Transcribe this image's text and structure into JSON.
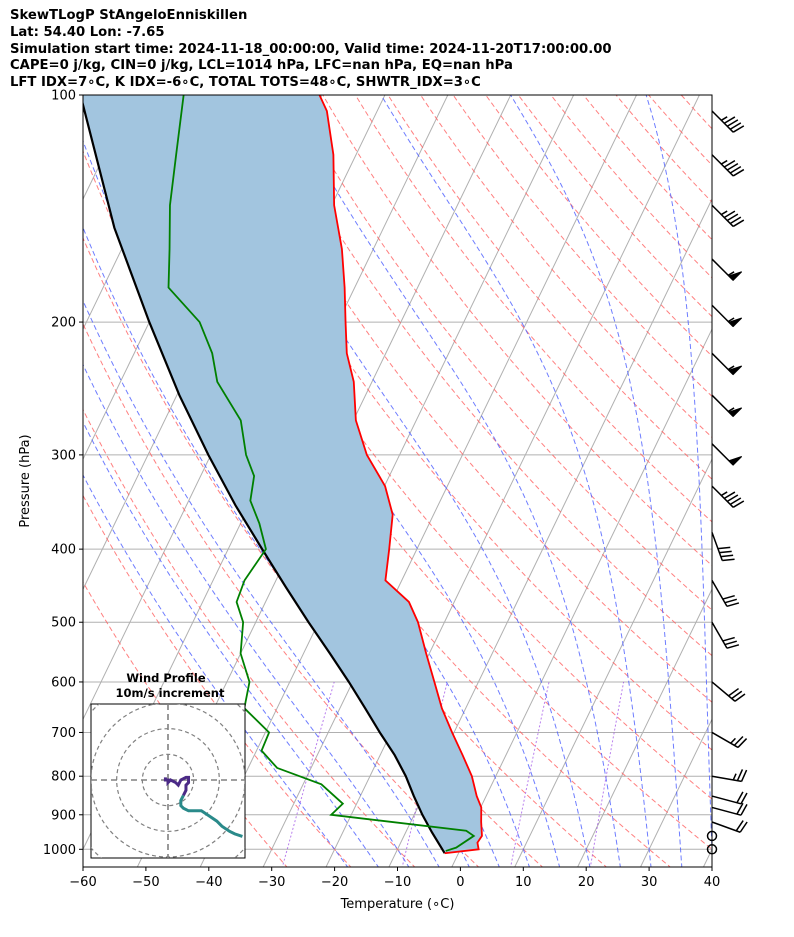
{
  "header": {
    "title": "SkewTLogP StAngeloEnniskillen",
    "location": "Lat: 54.40   Lon: -7.65",
    "times": "Simulation start time: 2024-11-18_00:00:00, Valid time: 2024-11-20T17:00:00.00",
    "indices1": "CAPE=0 j/kg, CIN=0 j/kg, LCL=1014 hPa, LFC=nan hPa, EQ=nan hPa",
    "indices2": "LFT IDX=7∘C, K IDX=-6∘C, TOTAL TOTS=48∘C, SHWTR_IDX=3∘C"
  },
  "colors": {
    "temperature": "#ff0000",
    "dewpoint": "#008000",
    "parcel": "#000000",
    "cape_fill": "#a2c5df",
    "dry_adiabat": "#ff6060",
    "moist_adiabat": "#4a5cff",
    "mixing_ratio": "#8a2be2",
    "isotherm": "#b0b0b0",
    "hodograph_upper": "#4b2a86",
    "hodograph_lower": "#2a8a8a"
  },
  "chart_data": {
    "type": "line",
    "title": "SkewTLogP StAngeloEnniskillen",
    "xlabel": "Temperature (∘C)",
    "ylabel": "Pressure (hPa)",
    "xlim": [
      -60,
      40
    ],
    "ylim": [
      1050,
      100
    ],
    "x_ticks": [
      -60,
      -50,
      -40,
      -30,
      -20,
      -10,
      0,
      10,
      20,
      30,
      40
    ],
    "x_tick_labels": [
      "−60",
      "−50",
      "−40",
      "−30",
      "−20",
      "−10",
      "0",
      "10",
      "20",
      "30",
      "40"
    ],
    "y_ticks": [
      1000,
      900,
      800,
      700,
      600,
      500,
      400,
      300,
      200,
      100
    ],
    "y_tick_labels": [
      "1000",
      "900",
      "800",
      "700",
      "600",
      "500",
      "400",
      "300",
      "200",
      "100"
    ],
    "skew_deg_per_decade": 58,
    "series": [
      {
        "name": "Temperature",
        "color": "#ff0000",
        "points": [
          [
            1012,
            -2.2
          ],
          [
            1000,
            2.9
          ],
          [
            980,
            2.2
          ],
          [
            960,
            2.4
          ],
          [
            920,
            1.2
          ],
          [
            880,
            0.1
          ],
          [
            850,
            -1.5
          ],
          [
            800,
            -3.8
          ],
          [
            750,
            -6.9
          ],
          [
            700,
            -10.3
          ],
          [
            650,
            -13.8
          ],
          [
            600,
            -17.0
          ],
          [
            550,
            -20.5
          ],
          [
            500,
            -24.2
          ],
          [
            470,
            -27.2
          ],
          [
            440,
            -32.6
          ],
          [
            400,
            -34.4
          ],
          [
            360,
            -36.5
          ],
          [
            330,
            -39.9
          ],
          [
            300,
            -45.2
          ],
          [
            270,
            -49.6
          ],
          [
            240,
            -52.9
          ],
          [
            220,
            -56.2
          ],
          [
            200,
            -58.8
          ],
          [
            180,
            -61.6
          ],
          [
            160,
            -65.0
          ],
          [
            140,
            -69.6
          ],
          [
            120,
            -73.6
          ],
          [
            105,
            -78.0
          ],
          [
            100,
            -80.4
          ]
        ]
      },
      {
        "name": "Dewpoint",
        "color": "#008000",
        "points": [
          [
            1005,
            -2.2
          ],
          [
            995,
            -0.8
          ],
          [
            960,
            1.1
          ],
          [
            945,
            -0.5
          ],
          [
            900,
            -23.2
          ],
          [
            870,
            -22.2
          ],
          [
            820,
            -27.1
          ],
          [
            780,
            -35.4
          ],
          [
            740,
            -39.2
          ],
          [
            700,
            -39.4
          ],
          [
            650,
            -45.2
          ],
          [
            600,
            -46.4
          ],
          [
            550,
            -50.0
          ],
          [
            500,
            -52.0
          ],
          [
            470,
            -54.6
          ],
          [
            440,
            -55.0
          ],
          [
            400,
            -54.0
          ],
          [
            370,
            -57.0
          ],
          [
            345,
            -60.2
          ],
          [
            320,
            -61.5
          ],
          [
            300,
            -64.4
          ],
          [
            270,
            -67.9
          ],
          [
            240,
            -74.6
          ],
          [
            220,
            -77.6
          ],
          [
            200,
            -82.0
          ],
          [
            180,
            -89.6
          ],
          [
            160,
            -92.4
          ],
          [
            140,
            -95.7
          ],
          [
            120,
            -98.6
          ],
          [
            100,
            -102.0
          ]
        ]
      },
      {
        "name": "Parcel",
        "color": "#000000",
        "points": [
          [
            1012,
            -2.2
          ],
          [
            950,
            -5.8
          ],
          [
            900,
            -8.7
          ],
          [
            850,
            -11.5
          ],
          [
            800,
            -14.3
          ],
          [
            750,
            -17.7
          ],
          [
            700,
            -21.8
          ],
          [
            650,
            -26.0
          ],
          [
            600,
            -30.6
          ],
          [
            550,
            -35.8
          ],
          [
            500,
            -41.6
          ],
          [
            450,
            -47.8
          ],
          [
            400,
            -54.6
          ],
          [
            350,
            -62.2
          ],
          [
            300,
            -70.4
          ],
          [
            250,
            -79.6
          ],
          [
            200,
            -90.0
          ],
          [
            150,
            -102.8
          ],
          [
            100,
            -118.4
          ]
        ]
      }
    ],
    "wind_barbs": [
      {
        "p": 1000,
        "speed_kt": 0,
        "dir_deg": 0
      },
      {
        "p": 960,
        "speed_kt": 0,
        "dir_deg": 0
      },
      {
        "p": 920,
        "speed_kt": 20,
        "dir_deg": 290
      },
      {
        "p": 880,
        "speed_kt": 20,
        "dir_deg": 285
      },
      {
        "p": 850,
        "speed_kt": 20,
        "dir_deg": 285
      },
      {
        "p": 800,
        "speed_kt": 25,
        "dir_deg": 280
      },
      {
        "p": 700,
        "speed_kt": 25,
        "dir_deg": 300
      },
      {
        "p": 600,
        "speed_kt": 30,
        "dir_deg": 310
      },
      {
        "p": 500,
        "speed_kt": 30,
        "dir_deg": 330
      },
      {
        "p": 440,
        "speed_kt": 30,
        "dir_deg": 330
      },
      {
        "p": 380,
        "speed_kt": 40,
        "dir_deg": 340
      },
      {
        "p": 330,
        "speed_kt": 45,
        "dir_deg": 315
      },
      {
        "p": 290,
        "speed_kt": 50,
        "dir_deg": 315
      },
      {
        "p": 250,
        "speed_kt": 55,
        "dir_deg": 315
      },
      {
        "p": 220,
        "speed_kt": 55,
        "dir_deg": 315
      },
      {
        "p": 190,
        "speed_kt": 55,
        "dir_deg": 315
      },
      {
        "p": 165,
        "speed_kt": 55,
        "dir_deg": 315
      },
      {
        "p": 140,
        "speed_kt": 45,
        "dir_deg": 315
      },
      {
        "p": 120,
        "speed_kt": 45,
        "dir_deg": 315
      },
      {
        "p": 105,
        "speed_kt": 45,
        "dir_deg": 315
      }
    ],
    "hodograph": {
      "title": "Wind Profile",
      "subtitle": "10m/s increment",
      "ring_increment_ms": 10,
      "rings": 4,
      "xlim": [
        -30,
        30
      ],
      "ylim": [
        -30,
        30
      ],
      "upper_points": [
        [
          -1,
          1
        ],
        [
          -1,
          0
        ],
        [
          0,
          0
        ],
        [
          0,
          -1
        ],
        [
          1,
          0
        ],
        [
          3,
          -1
        ],
        [
          4,
          -2
        ],
        [
          5,
          0
        ],
        [
          7,
          1
        ],
        [
          8,
          1
        ],
        [
          8,
          -1
        ],
        [
          7,
          -2
        ],
        [
          7,
          -4
        ],
        [
          6,
          -6
        ]
      ],
      "lower_points": [
        [
          6,
          -6
        ],
        [
          5,
          -8
        ],
        [
          5,
          -10
        ],
        [
          6,
          -11
        ],
        [
          8,
          -12
        ],
        [
          11,
          -12
        ],
        [
          13,
          -12
        ],
        [
          16,
          -14
        ],
        [
          19,
          -16
        ],
        [
          21,
          -18
        ],
        [
          24,
          -20
        ],
        [
          26,
          -21
        ],
        [
          29,
          -22
        ]
      ]
    }
  }
}
